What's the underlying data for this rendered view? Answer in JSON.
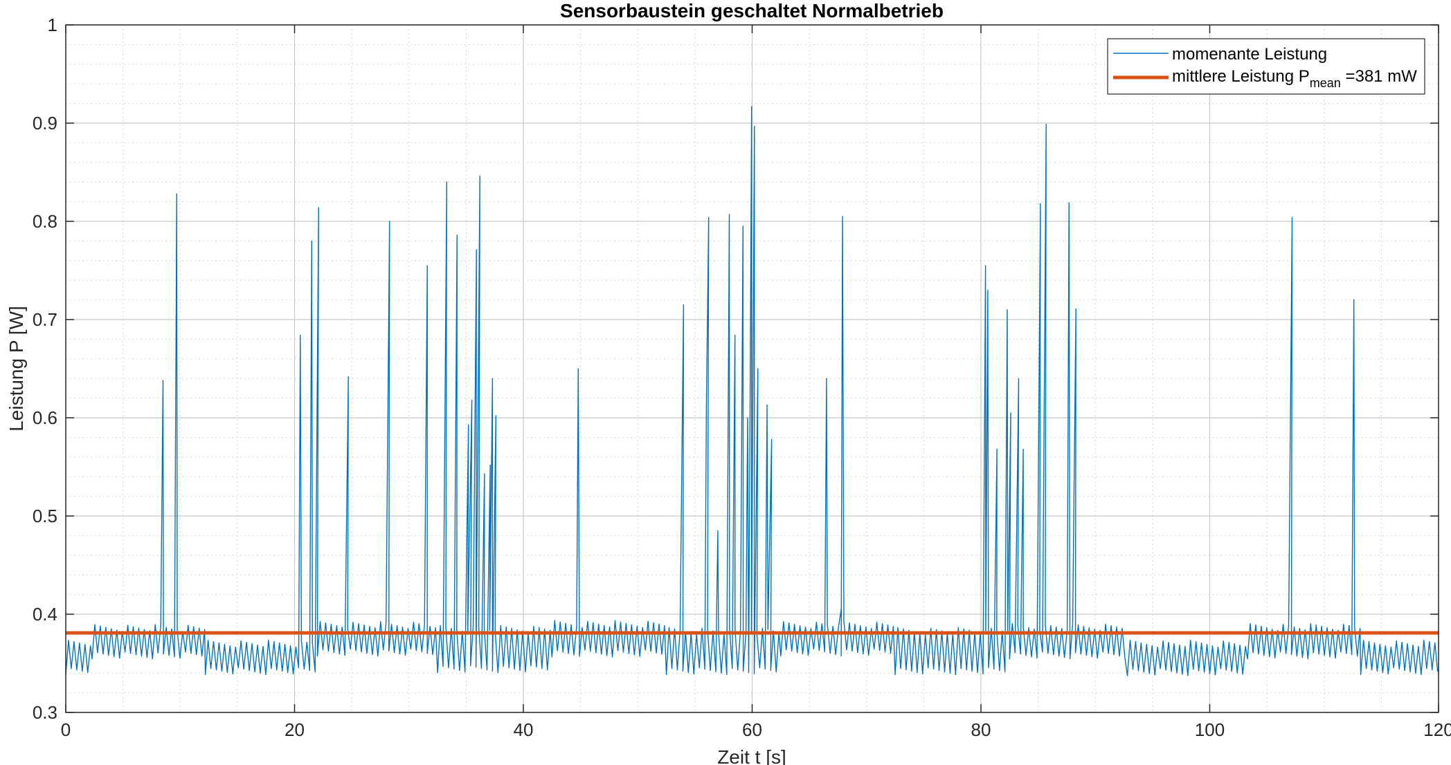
{
  "chart_data": {
    "type": "line",
    "title": "Sensorbaustein geschaltet Normalbetrieb",
    "xlabel": "Zeit t [s]",
    "ylabel": "Leistung P [W]",
    "xlim": [
      0,
      120
    ],
    "ylim": [
      0.3,
      1.0
    ],
    "x_ticks": [
      0,
      20,
      40,
      60,
      80,
      100,
      120
    ],
    "y_ticks": [
      0.3,
      0.4,
      0.5,
      0.6,
      0.7,
      0.8,
      0.9,
      1.0
    ],
    "x_tick_labels": [
      "0",
      "20",
      "40",
      "60",
      "80",
      "100",
      "120"
    ],
    "y_tick_labels": [
      "0.3",
      "0.4",
      "0.5",
      "0.6",
      "0.7",
      "0.8",
      "0.9",
      "1"
    ],
    "grid": true,
    "minor_grid": true,
    "legend_position": "top-right",
    "series": [
      {
        "name": "momenante Leistung",
        "color": "#0072BD",
        "baseline_segments": [
          {
            "x": [
              0,
              2.3
            ],
            "low": 0.342,
            "high": 0.37
          },
          {
            "x": [
              2.3,
              12.2
            ],
            "low": 0.358,
            "high": 0.386
          },
          {
            "x": [
              12.2,
              22.0
            ],
            "low": 0.342,
            "high": 0.37
          },
          {
            "x": [
              22.0,
              32.5
            ],
            "low": 0.361,
            "high": 0.389
          },
          {
            "x": [
              32.5,
              42.5
            ],
            "low": 0.344,
            "high": 0.385
          },
          {
            "x": [
              42.5,
              52.5
            ],
            "low": 0.36,
            "high": 0.39
          },
          {
            "x": [
              52.5,
              62.5
            ],
            "low": 0.342,
            "high": 0.383
          },
          {
            "x": [
              62.5,
              72.5
            ],
            "low": 0.361,
            "high": 0.389
          },
          {
            "x": [
              72.5,
              82.5
            ],
            "low": 0.342,
            "high": 0.383
          },
          {
            "x": [
              82.5,
              92.8
            ],
            "low": 0.358,
            "high": 0.387
          },
          {
            "x": [
              92.8,
              103.3
            ],
            "low": 0.341,
            "high": 0.37
          },
          {
            "x": [
              103.3,
              113.2
            ],
            "low": 0.358,
            "high": 0.387
          },
          {
            "x": [
              113.2,
              120
            ],
            "low": 0.342,
            "high": 0.37
          }
        ],
        "peaks": [
          {
            "x": 8.5,
            "y": 0.638
          },
          {
            "x": 9.7,
            "y": 0.828
          },
          {
            "x": 20.5,
            "y": 0.684
          },
          {
            "x": 21.5,
            "y": 0.78
          },
          {
            "x": 22.1,
            "y": 0.814
          },
          {
            "x": 24.7,
            "y": 0.642
          },
          {
            "x": 28.3,
            "y": 0.8
          },
          {
            "x": 31.6,
            "y": 0.755
          },
          {
            "x": 33.3,
            "y": 0.84
          },
          {
            "x": 34.2,
            "y": 0.786
          },
          {
            "x": 35.2,
            "y": 0.593
          },
          {
            "x": 35.5,
            "y": 0.618
          },
          {
            "x": 35.9,
            "y": 0.771
          },
          {
            "x": 36.2,
            "y": 0.846
          },
          {
            "x": 36.6,
            "y": 0.543
          },
          {
            "x": 37.1,
            "y": 0.552
          },
          {
            "x": 37.3,
            "y": 0.64
          },
          {
            "x": 37.6,
            "y": 0.602
          },
          {
            "x": 44.8,
            "y": 0.65
          },
          {
            "x": 54.0,
            "y": 0.715
          },
          {
            "x": 56.0,
            "y": 0.613
          },
          {
            "x": 56.2,
            "y": 0.804
          },
          {
            "x": 57.0,
            "y": 0.485
          },
          {
            "x": 58.0,
            "y": 0.807
          },
          {
            "x": 58.5,
            "y": 0.684
          },
          {
            "x": 59.2,
            "y": 0.795
          },
          {
            "x": 59.6,
            "y": 0.6
          },
          {
            "x": 59.95,
            "y": 0.917
          },
          {
            "x": 60.2,
            "y": 0.897
          },
          {
            "x": 60.5,
            "y": 0.65
          },
          {
            "x": 61.3,
            "y": 0.613
          },
          {
            "x": 61.7,
            "y": 0.578
          },
          {
            "x": 66.5,
            "y": 0.64
          },
          {
            "x": 67.8,
            "y": 0.406
          },
          {
            "x": 67.9,
            "y": 0.805
          },
          {
            "x": 80.4,
            "y": 0.755
          },
          {
            "x": 80.6,
            "y": 0.73
          },
          {
            "x": 81.4,
            "y": 0.568
          },
          {
            "x": 82.3,
            "y": 0.71
          },
          {
            "x": 82.6,
            "y": 0.605
          },
          {
            "x": 83.3,
            "y": 0.64
          },
          {
            "x": 83.7,
            "y": 0.568
          },
          {
            "x": 85.2,
            "y": 0.818
          },
          {
            "x": 85.7,
            "y": 0.899
          },
          {
            "x": 87.7,
            "y": 0.819
          },
          {
            "x": 88.3,
            "y": 0.711
          },
          {
            "x": 107.2,
            "y": 0.804
          },
          {
            "x": 112.6,
            "y": 0.72
          }
        ]
      },
      {
        "name": "mittlere Leistung P_mean =381 mW",
        "color": "#D95319",
        "x": [
          0,
          120
        ],
        "y": [
          0.381,
          0.381
        ]
      }
    ],
    "legend": {
      "entry1": "momenante Leistung",
      "entry2_main": "mittlere Leistung P",
      "entry2_sub": "mean",
      "entry2_tail": " =381 mW"
    }
  }
}
